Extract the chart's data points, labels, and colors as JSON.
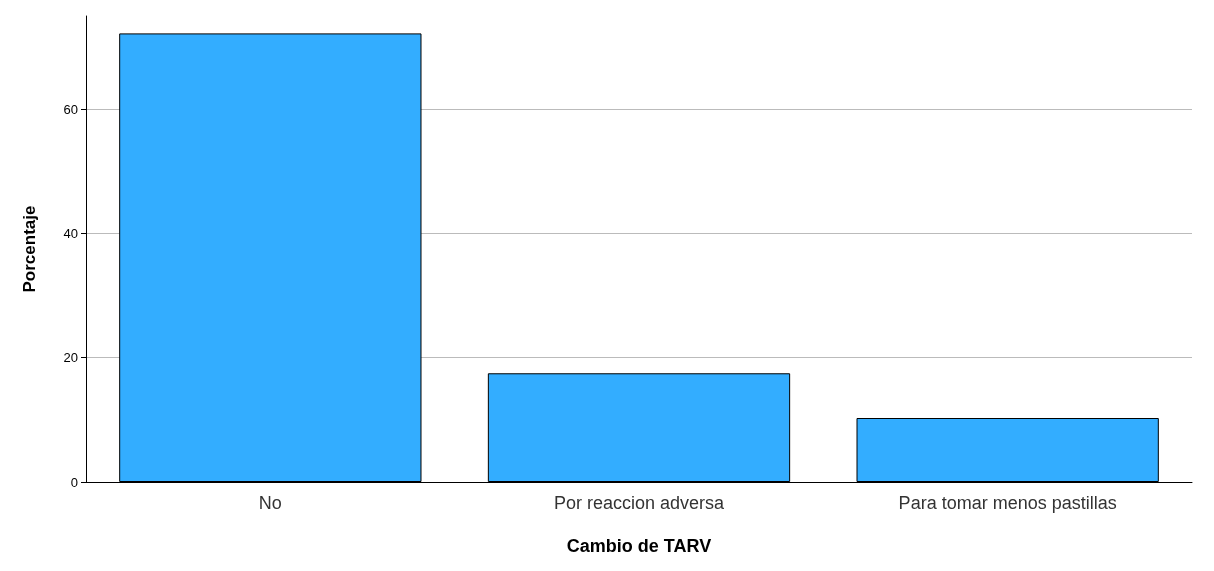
{
  "chart_data": {
    "type": "bar",
    "xlabel": "Cambio de TARV",
    "ylabel": "Porcentaje",
    "categories": [
      "No",
      "Por reaccion adversa",
      "Para tomar menos pastillas"
    ],
    "values": [
      72.2,
      17.5,
      10.3
    ],
    "color": "#33adff",
    "ylim": [
      0,
      75
    ],
    "yticks": [
      0,
      20,
      40,
      60
    ],
    "grid": "y"
  }
}
